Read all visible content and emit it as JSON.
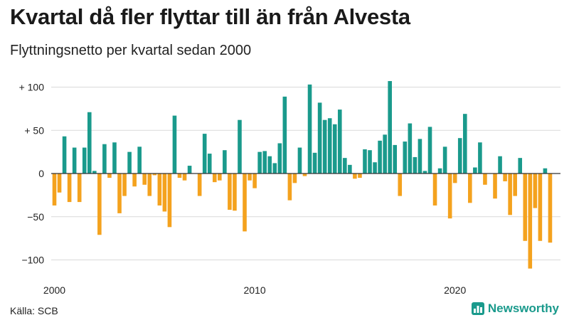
{
  "title": "Kvartal då fler flyttar till än från Alvesta",
  "subtitle": "Flyttningsnetto per kvartal sedan 2000",
  "source": "Källa: SCB",
  "brand": {
    "name": "Newsworthy",
    "icon": "bar-chart-logo-icon"
  },
  "colors": {
    "positive": "#1a9a8c",
    "negative": "#f4a21e",
    "axis": "#333333",
    "grid": "#d9d9d9"
  },
  "chart_data": {
    "type": "bar",
    "title": "Kvartal då fler flyttar till än från Alvesta",
    "subtitle": "Flyttningsnetto per kvartal sedan 2000",
    "xlabel": "",
    "ylabel": "",
    "x_start": 2000,
    "x_ticks": [
      2000,
      2010,
      2020
    ],
    "x_tick_labels": [
      "2000",
      "2010",
      "2020"
    ],
    "y_ticks": [
      100,
      50,
      0,
      -50,
      -100
    ],
    "y_tick_labels": [
      "+ 100",
      "+  50",
      "0",
      "−50",
      "−100"
    ],
    "ylim": [
      -110,
      110
    ],
    "grid": true,
    "legend": "none",
    "values": [
      -37,
      -22,
      43,
      -33,
      30,
      -33,
      30,
      71,
      3,
      -71,
      34,
      -5,
      36,
      -46,
      -26,
      25,
      -15,
      31,
      -13,
      -26,
      -2,
      -37,
      -44,
      -62,
      67,
      -5,
      -8,
      9,
      0,
      -26,
      46,
      23,
      -10,
      -8,
      27,
      -42,
      -43,
      62,
      -67,
      -8,
      -17,
      25,
      26,
      20,
      12,
      35,
      89,
      -31,
      -11,
      30,
      -3,
      103,
      24,
      82,
      62,
      64,
      57,
      74,
      18,
      10,
      -6,
      -5,
      28,
      27,
      13,
      38,
      45,
      107,
      33,
      -26,
      37,
      58,
      19,
      40,
      3,
      54,
      -37,
      6,
      31,
      -52,
      -11,
      41,
      69,
      -34,
      7,
      36,
      -13,
      0,
      -29,
      20,
      -9,
      -48,
      -26,
      18,
      -78,
      -110,
      -40,
      -78,
      6,
      -80
    ]
  }
}
